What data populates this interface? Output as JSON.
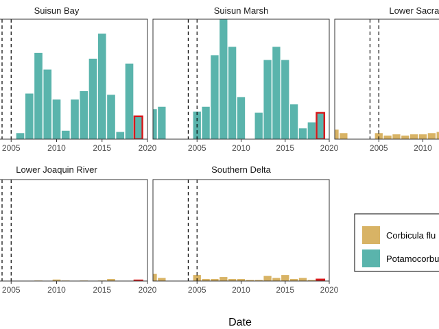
{
  "chart_data": {
    "type": "bar",
    "xlabel": "Date",
    "xlim": [
      2000,
      2020
    ],
    "x_ticks": [
      2005,
      2010,
      2015,
      2020
    ],
    "ylim": [
      0,
      100
    ],
    "y_tick_labels_shown": false,
    "grid": false,
    "dashed_reference_lines": [
      2004,
      2005
    ],
    "highlighted_year": 2019,
    "colors": {
      "Corbicula": "#D8B365",
      "Potamocorbula": "#5AB4AC",
      "highlight_outline": "#D7191C",
      "reference_line": "#000000"
    },
    "legend": {
      "position": "right",
      "entries": [
        {
          "label": "Corbicula flu",
          "color": "#D8B365"
        },
        {
          "label": "Potamocorbu",
          "color": "#5AB4AC"
        }
      ]
    },
    "panels": [
      {
        "title": "Suisun Bay",
        "series": [
          {
            "name": "Potamocorbula",
            "color": "#5AB4AC",
            "x": [
              2006,
              2007,
              2008,
              2009,
              2010,
              2011,
              2012,
              2013,
              2014,
              2015,
              2016,
              2017,
              2018,
              2019
            ],
            "values": [
              5,
              38,
              72,
              58,
              33,
              7,
              33,
              40,
              67,
              88,
              37,
              6,
              63,
              19
            ]
          }
        ]
      },
      {
        "title": "Suisun Marsh",
        "series": [
          {
            "name": "Potamocorbula",
            "color": "#5AB4AC",
            "x": [
              2000,
              2001,
              2002,
              2005,
              2006,
              2007,
              2008,
              2009,
              2010,
              2012,
              2013,
              2014,
              2015,
              2016,
              2017,
              2018,
              2019
            ],
            "values": [
              25,
              27,
              0,
              23,
              27,
              70,
              100,
              77,
              35,
              22,
              66,
              77,
              66,
              29,
              9,
              14,
              22
            ]
          }
        ]
      },
      {
        "title": "Lower Sacramen",
        "series": [
          {
            "name": "Corbicula",
            "color": "#D8B365",
            "x": [
              2000,
              2001,
              2005,
              2006,
              2007,
              2008,
              2009,
              2010,
              2011,
              2012
            ],
            "values": [
              8,
              5,
              5,
              3,
              4,
              3,
              4,
              4,
              5,
              6
            ]
          }
        ]
      },
      {
        "title": "Lower Joaquin River",
        "series": [
          {
            "name": "Corbicula",
            "color": "#D8B365",
            "x": [
              2008,
              2010,
              2011,
              2013,
              2015,
              2016,
              2019
            ],
            "values": [
              0.5,
              1.5,
              0.5,
              0.5,
              0.5,
              2,
              0.6
            ]
          }
        ]
      },
      {
        "title": "Southern Delta",
        "series": [
          {
            "name": "Corbicula",
            "color": "#D8B365",
            "x": [
              2000,
              2001,
              2005,
              2006,
              2007,
              2008,
              2009,
              2010,
              2011,
              2012,
              2013,
              2014,
              2015,
              2016,
              2017,
              2018,
              2019
            ],
            "values": [
              7,
              3,
              6,
              2,
              2,
              4,
              2,
              2,
              1,
              1,
              5,
              3,
              6,
              2,
              3,
              1,
              1.5
            ]
          }
        ]
      }
    ]
  }
}
